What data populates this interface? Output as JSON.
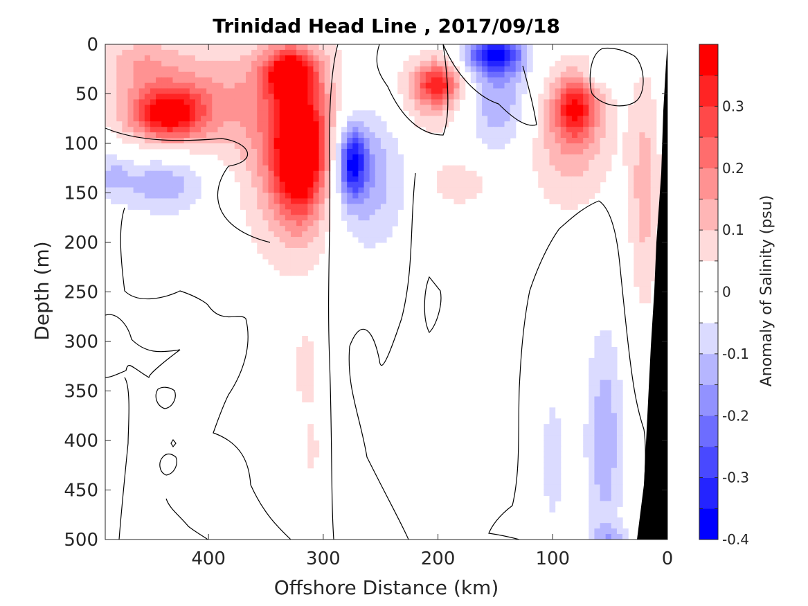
{
  "chart_data": {
    "type": "contour",
    "title": "Trinidad Head Line , 2017/09/18",
    "xlabel": "Offshore Distance (km)",
    "ylabel": "Depth (m)",
    "xlim": [
      490,
      0
    ],
    "xaxis_direction": "reversed",
    "ylim": [
      0,
      500
    ],
    "yaxis_direction": "reversed",
    "x_ticks": [
      400,
      300,
      200,
      100,
      0
    ],
    "y_ticks": [
      0,
      50,
      100,
      150,
      200,
      250,
      300,
      350,
      400,
      450,
      500
    ],
    "colorbar": {
      "label": "Anomaly of Salinity (psu)",
      "range": [
        -0.4,
        0.4
      ],
      "step": 0.05,
      "tick_labels": [
        "0.3",
        "0.2",
        "0.1",
        "0",
        "-0.1",
        "-0.2",
        "-0.3",
        "-0.4"
      ],
      "tick_values": [
        0.3,
        0.2,
        0.1,
        0,
        -0.1,
        -0.2,
        -0.3,
        -0.4
      ],
      "colormap": "blue-white-red",
      "negative_color": "#0000ff",
      "positive_color": "#ff0000"
    },
    "bathymetry_color": "#000000",
    "anomaly_blobs": [
      {
        "name": "red-core-320",
        "x": 320,
        "depth": 110,
        "rx": 22,
        "ry": 60,
        "peak": 0.38
      },
      {
        "name": "red-upper-330",
        "x": 330,
        "depth": 30,
        "rx": 20,
        "ry": 22,
        "peak": 0.34
      },
      {
        "name": "red-wide-320",
        "x": 325,
        "depth": 95,
        "rx": 45,
        "ry": 115,
        "peak": 0.2
      },
      {
        "name": "red-west-440",
        "x": 435,
        "depth": 70,
        "rx": 30,
        "ry": 25,
        "peak": 0.3
      },
      {
        "name": "red-west-broad",
        "x": 420,
        "depth": 55,
        "rx": 70,
        "ry": 55,
        "peak": 0.16
      },
      {
        "name": "red-top-west",
        "x": 460,
        "depth": 15,
        "rx": 30,
        "ry": 25,
        "peak": 0.08
      },
      {
        "name": "red-200",
        "x": 200,
        "depth": 40,
        "rx": 18,
        "ry": 20,
        "peak": 0.25
      },
      {
        "name": "red-200-broad",
        "x": 205,
        "depth": 50,
        "rx": 35,
        "ry": 45,
        "peak": 0.12
      },
      {
        "name": "red-180-deep",
        "x": 180,
        "depth": 140,
        "rx": 30,
        "ry": 25,
        "peak": 0.09
      },
      {
        "name": "red-80",
        "x": 80,
        "depth": 65,
        "rx": 18,
        "ry": 30,
        "peak": 0.26
      },
      {
        "name": "red-80-broad",
        "x": 85,
        "depth": 90,
        "rx": 38,
        "ry": 75,
        "peak": 0.14
      },
      {
        "name": "red-coastal",
        "x": 20,
        "depth": 150,
        "rx": 14,
        "ry": 120,
        "peak": 0.12
      },
      {
        "name": "red-310-deep",
        "x": 315,
        "depth": 330,
        "rx": 10,
        "ry": 40,
        "peak": 0.09
      },
      {
        "name": "red-310-400",
        "x": 310,
        "depth": 410,
        "rx": 6,
        "ry": 30,
        "peak": 0.08
      },
      {
        "name": "blue-275",
        "x": 275,
        "depth": 120,
        "rx": 12,
        "ry": 35,
        "peak": -0.3
      },
      {
        "name": "blue-270-broad",
        "x": 265,
        "depth": 130,
        "rx": 35,
        "ry": 75,
        "peak": -0.16
      },
      {
        "name": "blue-150-top",
        "x": 150,
        "depth": 10,
        "rx": 25,
        "ry": 20,
        "peak": -0.32
      },
      {
        "name": "blue-150",
        "x": 148,
        "depth": 55,
        "rx": 30,
        "ry": 55,
        "peak": -0.15
      },
      {
        "name": "blue-440",
        "x": 440,
        "depth": 140,
        "rx": 40,
        "ry": 30,
        "peak": -0.15
      },
      {
        "name": "blue-480",
        "x": 485,
        "depth": 130,
        "rx": 15,
        "ry": 25,
        "peak": -0.09
      },
      {
        "name": "blue-60",
        "x": 60,
        "depth": 30,
        "rx": 10,
        "ry": 10,
        "peak": -0.12
      },
      {
        "name": "blue-55-deep",
        "x": 55,
        "depth": 400,
        "rx": 16,
        "ry": 110,
        "peak": -0.14
      },
      {
        "name": "blue-100-deep",
        "x": 100,
        "depth": 420,
        "rx": 10,
        "ry": 80,
        "peak": -0.08
      },
      {
        "name": "blue-50-bottom",
        "x": 50,
        "depth": 500,
        "rx": 18,
        "ry": 15,
        "peak": -0.1
      }
    ]
  }
}
